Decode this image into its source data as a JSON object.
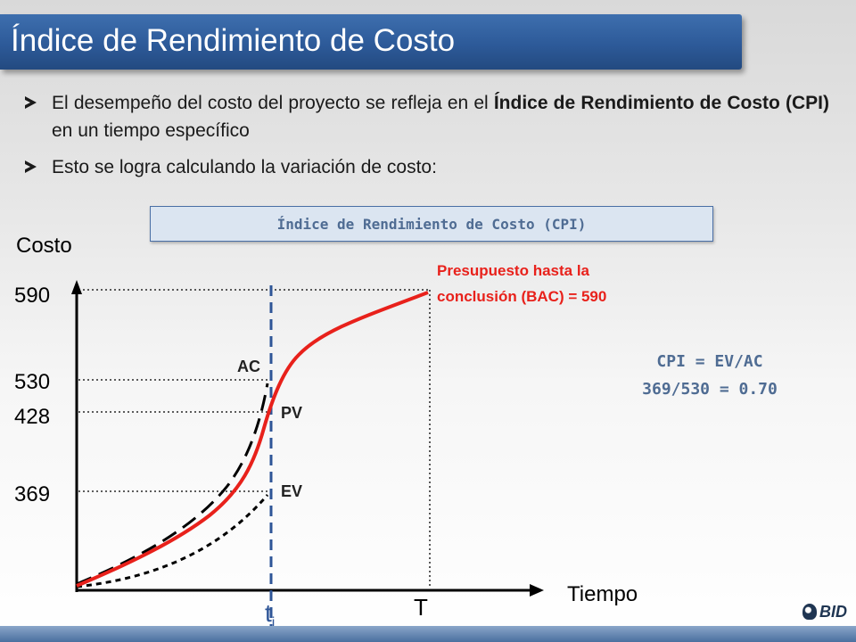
{
  "slide": {
    "title": "Índice de Rendimiento de Costo",
    "bullet1": {
      "text_a": "El desempeño del costo del proyecto se refleja en el ",
      "bold_a": "Índice de",
      "bold_b": "Rendimiento de Costo (CPI)",
      "text_b": " en un tiempo específico"
    },
    "bullet2": "Esto se logra calculando la variación de costo:",
    "box_label": "Índice de Rendimiento de Costo (CPI)"
  },
  "chart_data": {
    "type": "line",
    "ylabel": "Costo",
    "xlabel": "Tiempo",
    "y_ticks": [
      "590",
      "530",
      "428",
      "369"
    ],
    "x_ticks": [
      "t",
      "T"
    ],
    "x_tick_sub": "i",
    "series": [
      {
        "name": "PV",
        "color": "#e8211b",
        "style": "solid"
      },
      {
        "name": "AC",
        "color": "#000000",
        "style": "dashed"
      },
      {
        "name": "EV",
        "color": "#000000",
        "style": "dotted"
      }
    ],
    "values": {
      "BAC": 590,
      "AC": 530,
      "PV": 428,
      "EV": 369
    },
    "bac_label_line1": "Presupuesto hasta la",
    "bac_label_line2": "conclusión (BAC) = 590",
    "formula_line1": "CPI = EV/AC",
    "formula_line2": "369/530 = 0.70",
    "colors": {
      "accent_red": "#e8211b",
      "formula_blue": "#4f6c93",
      "marker_line": "#2e5597"
    }
  },
  "footer": {
    "logo_text": "BID"
  }
}
